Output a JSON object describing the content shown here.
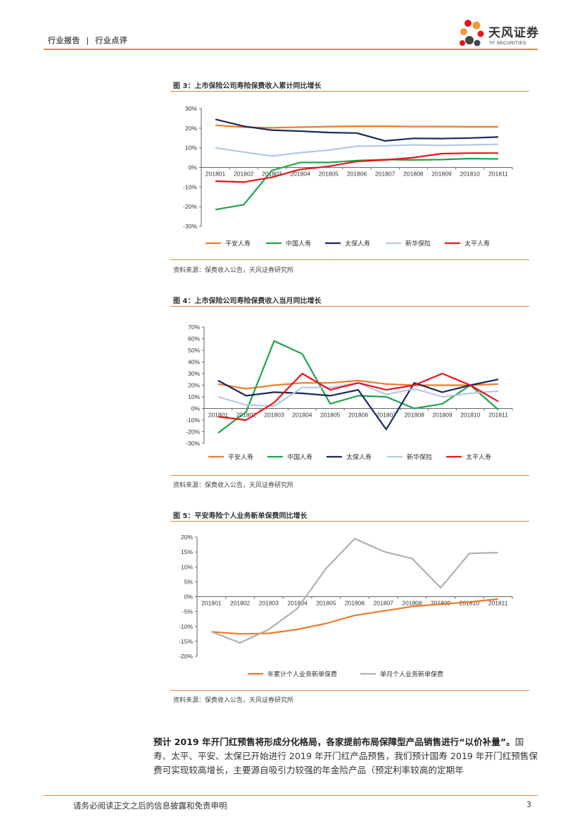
{
  "header": {
    "category": "行业报告",
    "separator": "|",
    "subcategory": "行业点评"
  },
  "logo": {
    "name_cn": "天风证券",
    "name_en": "TF SECURITIES"
  },
  "colors": {
    "accent": "#e38a3e",
    "pingan": "#ec7b2c",
    "guoshou": "#1fa34a",
    "taibao": "#1a2a5c",
    "xinhua": "#b4c7e7",
    "taiping": "#e8151b",
    "gray": "#b0b0b0"
  },
  "figures": [
    {
      "title": "图 3：上市保险公司寿险保费收入累计同比增长",
      "source": "资料来源：保费收入公告，天风证券研究所"
    },
    {
      "title": "图 4：上市保险公司寿险保费收入当月同比增长",
      "source": "资料来源：保费收入公告，天风证券研究所"
    },
    {
      "title": "图 5：平安寿险个人业务新单保费同比增长",
      "source": "资料来源：保费收入公告，天风证券研究所"
    }
  ],
  "paragraph": {
    "bold": "预计 2019 年开门红预售将形成分化格局，各家提前布局保障型产品销售进行“以价补量”。",
    "normal": "国寿、太平、平安、太保已开始进行 2019 年开门红产品预售，我们预计国寿 2019 年开门红预售保费可实现较高增长，主要源自吸引力较强的年金险产品（预定利率较高的定期年"
  },
  "footer": {
    "disclaimer": "请务必阅读正文之后的信息披露和免责申明",
    "page": "3"
  },
  "chart_data": [
    {
      "type": "line",
      "title": "图 3：上市保险公司寿险保费收入累计同比增长",
      "categories": [
        "201801",
        "201802",
        "201803",
        "201804",
        "201805",
        "201806",
        "201807",
        "201808",
        "201809",
        "201810",
        "201811"
      ],
      "ylim": [
        -30,
        30
      ],
      "yticks": [
        -30,
        -20,
        -10,
        0,
        10,
        20,
        30
      ],
      "ytick_labels": [
        "-30%",
        "-20%",
        "-10%",
        "0%",
        "10%",
        "20%",
        "30%"
      ],
      "legend": "bottom",
      "series": [
        {
          "name": "平安人寿",
          "color": "#ec7b2c",
          "values": [
            21.5,
            20.5,
            20.2,
            20.5,
            20.8,
            21.0,
            21.0,
            20.8,
            20.8,
            20.7,
            20.7
          ]
        },
        {
          "name": "中国人寿",
          "color": "#1fa34a",
          "values": [
            -21.5,
            -19.0,
            -1.5,
            2.5,
            2.5,
            3.5,
            4.0,
            3.8,
            4.0,
            4.5,
            4.3
          ]
        },
        {
          "name": "太保人寿",
          "color": "#1a2a5c",
          "values": [
            24.5,
            21.0,
            19.0,
            18.5,
            17.8,
            17.5,
            13.5,
            14.8,
            14.7,
            15.0,
            15.5
          ]
        },
        {
          "name": "新华保险",
          "color": "#b4c7e7",
          "values": [
            10.0,
            7.8,
            5.8,
            7.5,
            8.8,
            10.8,
            11.0,
            11.5,
            11.2,
            11.5,
            11.8
          ]
        },
        {
          "name": "太平人寿",
          "color": "#e8151b",
          "values": [
            -7.0,
            -7.5,
            -5.0,
            -1.0,
            0.5,
            3.0,
            3.8,
            5.0,
            7.0,
            7.3,
            7.3
          ]
        }
      ]
    },
    {
      "type": "line",
      "title": "图 4：上市保险公司寿险保费收入当月同比增长",
      "categories": [
        "201801",
        "201802",
        "201803",
        "201804",
        "201805",
        "201806",
        "201807",
        "201808",
        "201809",
        "201810",
        "201811"
      ],
      "ylim": [
        -30,
        70
      ],
      "yticks": [
        -30,
        -20,
        -10,
        0,
        10,
        20,
        30,
        40,
        50,
        60,
        70
      ],
      "ytick_labels": [
        "-30%",
        "-20%",
        "-10%",
        "0%",
        "10%",
        "20%",
        "30%",
        "40%",
        "50%",
        "60%",
        "70%"
      ],
      "legend": "bottom",
      "series": [
        {
          "name": "平安人寿",
          "color": "#ec7b2c",
          "values": [
            21,
            17,
            20,
            22,
            22,
            24,
            21,
            20,
            20,
            20,
            21
          ]
        },
        {
          "name": "中国人寿",
          "color": "#1fa34a",
          "values": [
            -21,
            -3,
            58,
            47,
            4,
            11,
            10,
            0,
            4,
            20,
            -1
          ]
        },
        {
          "name": "太保人寿",
          "color": "#1a2a5c",
          "values": [
            24,
            11,
            14,
            13,
            11,
            16,
            -18,
            22,
            14,
            20,
            25
          ]
        },
        {
          "name": "新华保险",
          "color": "#b4c7e7",
          "values": [
            10,
            3,
            2,
            18,
            18,
            22,
            12,
            17,
            10,
            13,
            15
          ]
        },
        {
          "name": "太平人寿",
          "color": "#e8151b",
          "values": [
            -7,
            -10,
            5,
            30,
            16,
            22,
            16,
            20,
            30,
            20,
            6
          ]
        }
      ]
    },
    {
      "type": "line",
      "title": "图 5：平安寿险个人业务新单保费同比增长",
      "categories": [
        "201801",
        "201802",
        "201803",
        "201804",
        "201805",
        "201806",
        "201807",
        "201808",
        "201809",
        "201810",
        "201811"
      ],
      "ylim": [
        -20,
        20
      ],
      "yticks": [
        -20,
        -15,
        -10,
        -5,
        0,
        5,
        10,
        15,
        20
      ],
      "ytick_labels": [
        "-20%",
        "-15%",
        "-10%",
        "-5%",
        "0%",
        "5%",
        "10%",
        "15%",
        "20%"
      ],
      "legend": "bottom",
      "series": [
        {
          "name": "年累计个人业务新单保费",
          "color": "#ec7b2c",
          "values": [
            -11.8,
            -12.5,
            -12.3,
            -11.0,
            -9.0,
            -6.3,
            -4.8,
            -3.3,
            -2.5,
            -1.8,
            -0.8
          ]
        },
        {
          "name": "单月个人业务新单保费",
          "color": "#b0b0b0",
          "values": [
            -11.8,
            -15.5,
            -11.0,
            -4.0,
            9.5,
            19.5,
            15.2,
            12.8,
            3.0,
            14.5,
            14.8
          ]
        }
      ]
    }
  ]
}
